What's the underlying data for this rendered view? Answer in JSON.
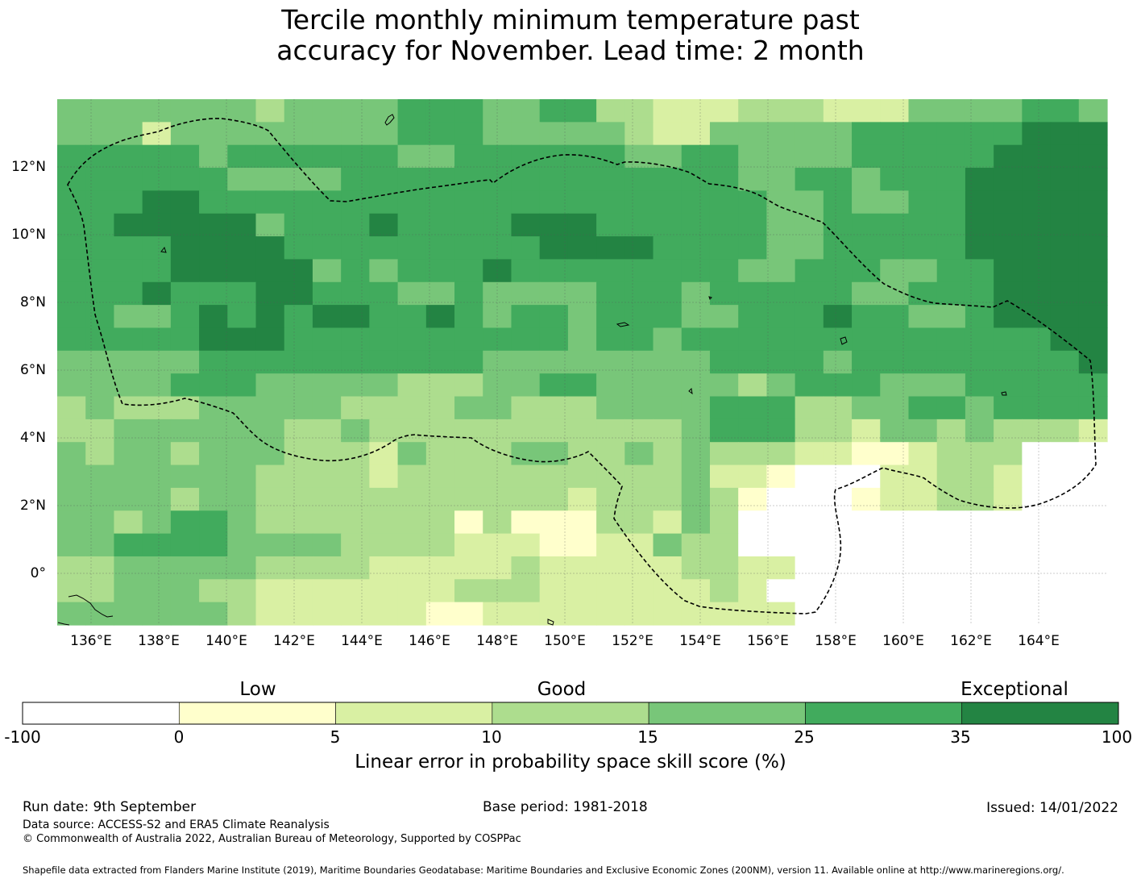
{
  "title": {
    "line1": "Tercile monthly minimum temperature past",
    "line2": "accuracy for November. Lead time: 2 month"
  },
  "map": {
    "lon_ticks": [
      "136°E",
      "138°E",
      "140°E",
      "142°E",
      "144°E",
      "146°E",
      "148°E",
      "150°E",
      "152°E",
      "154°E",
      "156°E",
      "158°E",
      "160°E",
      "162°E",
      "164°E"
    ],
    "lat_ticks": [
      "12°N",
      "10°N",
      "8°N",
      "6°N",
      "4°N",
      "2°N",
      "0°"
    ],
    "lon_range": [
      135.0,
      166.0
    ],
    "lat_range": [
      -1.5,
      14.0
    ],
    "grid": true,
    "boundary": "dashed EEZ outline",
    "ocean_color": "#ffffff",
    "land_outline_color": "#000000"
  },
  "colorbar": {
    "title": "Linear error in probability space skill score (%)",
    "category_labels": [
      "Low",
      "Good",
      "Exceptional"
    ],
    "tick_labels": [
      "-100",
      "0",
      "5",
      "10",
      "15",
      "25",
      "35",
      "100"
    ],
    "bins": [
      {
        "from": -100,
        "to": 0,
        "color": "#ffffff"
      },
      {
        "from": 0,
        "to": 5,
        "color": "#ffffcc"
      },
      {
        "from": 5,
        "to": 10,
        "color": "#d9f0a3"
      },
      {
        "from": 10,
        "to": 15,
        "color": "#addd8e"
      },
      {
        "from": 15,
        "to": 25,
        "color": "#78c679"
      },
      {
        "from": 25,
        "to": 35,
        "color": "#41ab5d"
      },
      {
        "from": 35,
        "to": 100,
        "color": "#238443"
      }
    ]
  },
  "footer": {
    "run_date": "Run date: 9th September",
    "base_period": "Base period: 1981-2018",
    "issued": "Issued: 14/01/2022",
    "data_source": "Data source: ACCESS-S2 and ERA5 Climate Reanalysis",
    "copyright": "© Commonwealth of Australia 2022, Australian Bureau of Meteorology, Supported by COSPPac",
    "shapefile": "Shapefile data extracted from Flanders Marine Institute (2019), Maritime Boundaries Geodatabase: Maritime Boundaries and Exclusive Economic Zones (200NM), version 11. Available online at http://www.marineregions.org/."
  }
}
